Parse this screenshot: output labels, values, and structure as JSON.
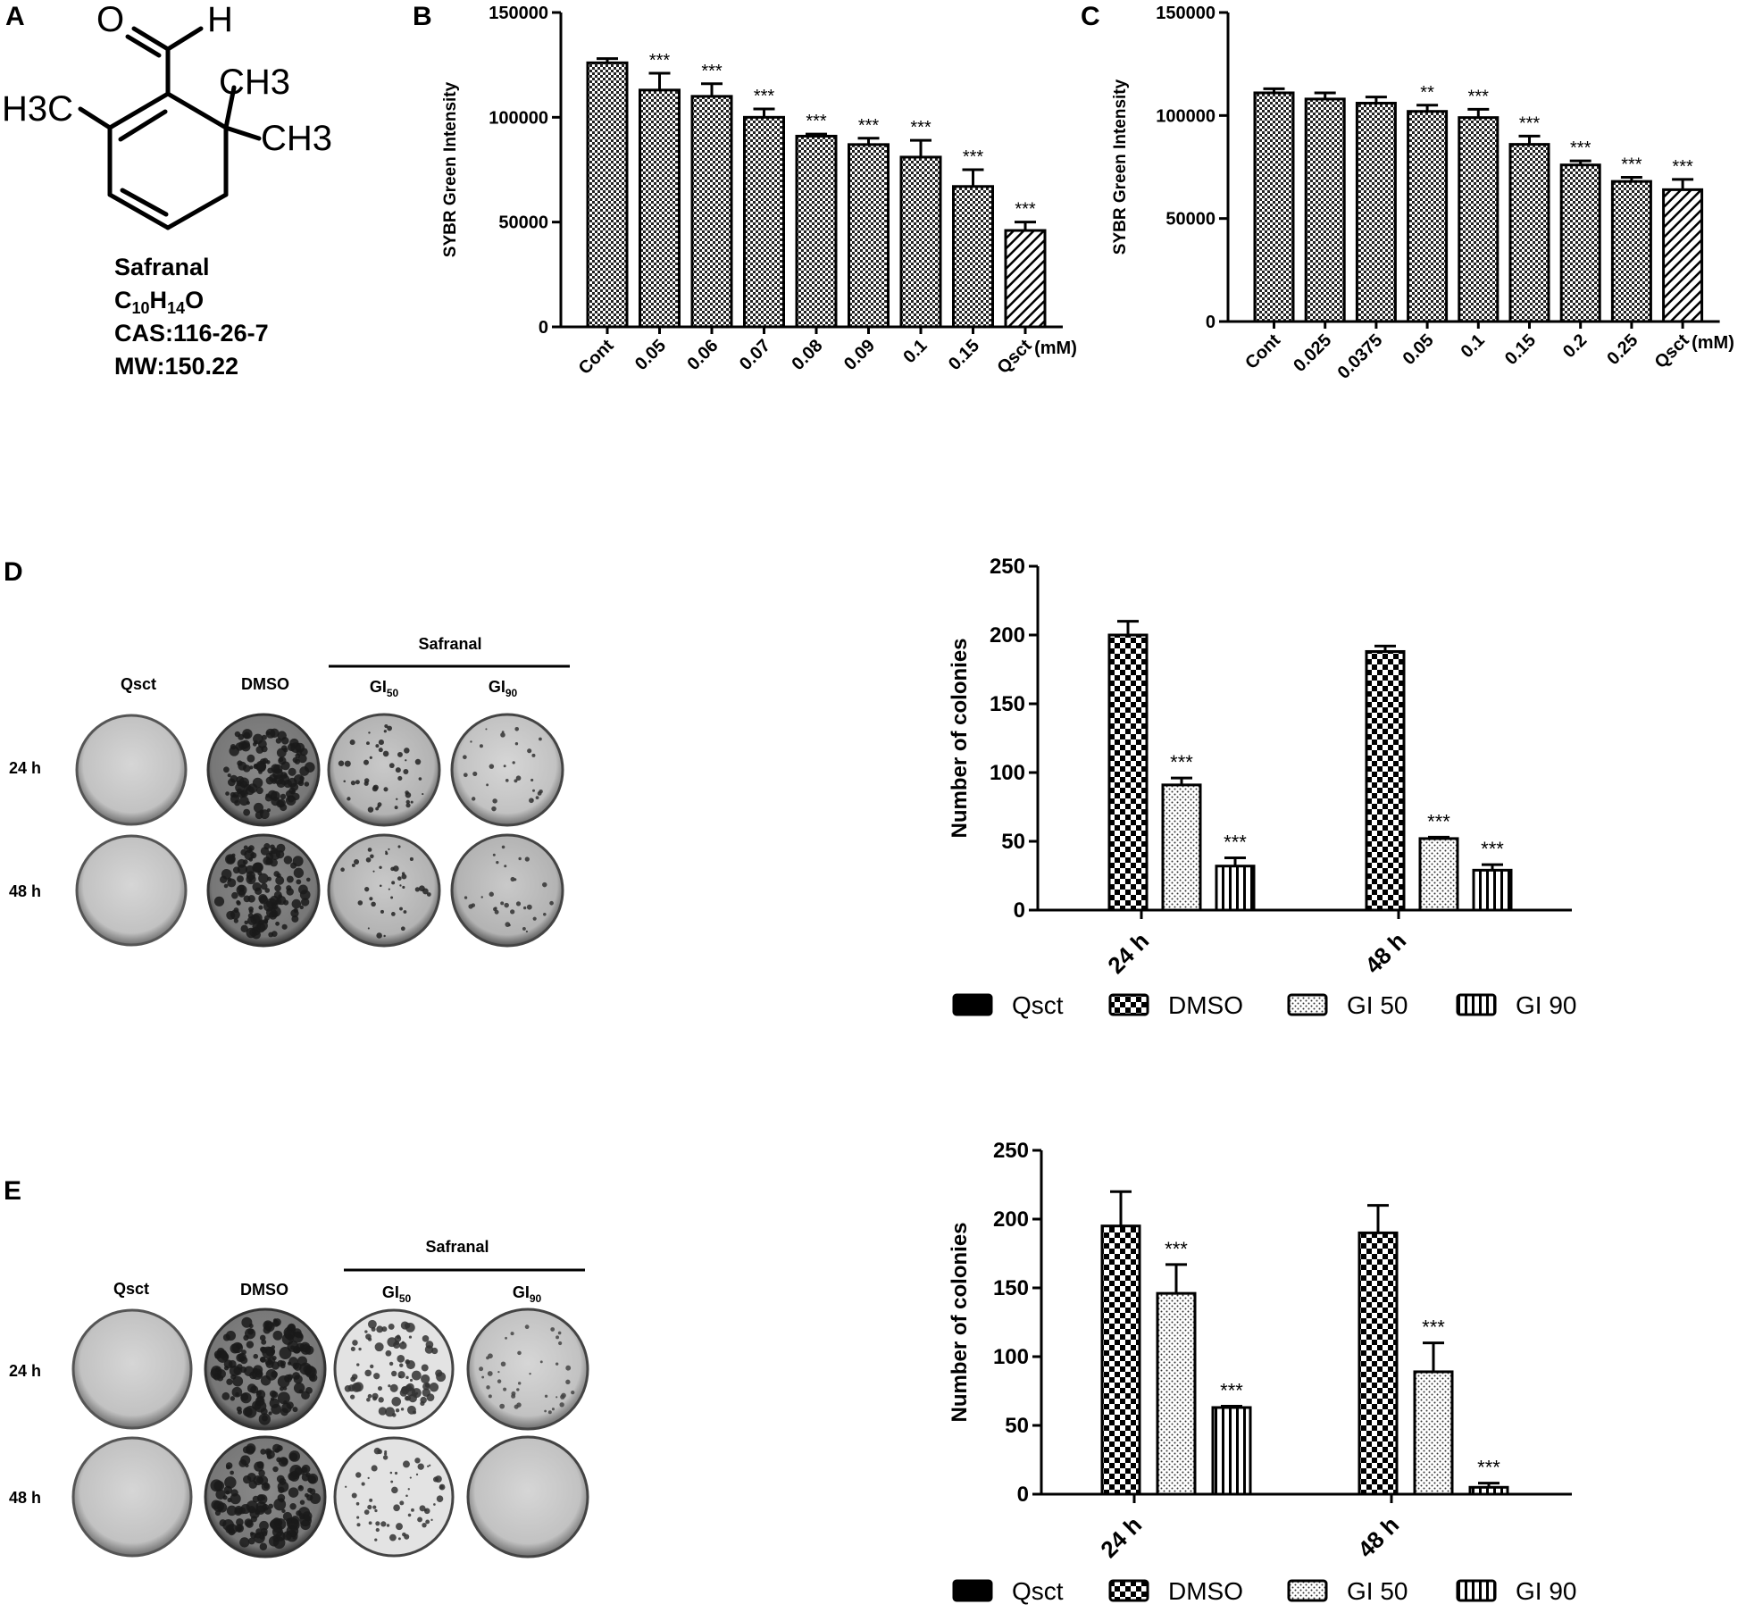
{
  "panel_a": {
    "letter": "A",
    "molecule": {
      "o_label": "O",
      "h_label": "H",
      "methyl_left": "H3C",
      "methyl_right_top": "CH3",
      "methyl_right_bottom": "CH3"
    },
    "name": "Safranal",
    "formula_main": "C",
    "formula_sub1": "10",
    "formula_h": "H",
    "formula_sub2": "14",
    "formula_o": "O",
    "cas": "CAS:116-26-7",
    "mw": "MW:150.22"
  },
  "panel_d": {
    "letter": "D",
    "group_label": "Safranal",
    "columns": [
      "Qsct",
      "DMSO",
      "GI",
      "GI"
    ],
    "column_subscripts": [
      "",
      "",
      "50",
      "90"
    ],
    "rows": [
      "24 h",
      "48 h"
    ]
  },
  "panel_e": {
    "letter": "E",
    "group_label": "Safranal",
    "columns": [
      "Qsct",
      "DMSO",
      "GI",
      "GI"
    ],
    "column_subscripts": [
      "",
      "",
      "50",
      "90"
    ],
    "rows": [
      "24 h",
      "48 h"
    ]
  },
  "chart_data": [
    {
      "id": "B",
      "panel_letter": "B",
      "type": "bar",
      "ylabel": "SYBR Green Intensity",
      "unit_label": "(mM)",
      "ylim": [
        0,
        150000
      ],
      "yticks": [
        0,
        50000,
        100000,
        150000
      ],
      "ytick_labels": [
        "0",
        "50000",
        "100000",
        "150000"
      ],
      "categories": [
        "Cont",
        "0.05",
        "0.06",
        "0.07",
        "0.08",
        "0.09",
        "0.1",
        "0.15",
        "Qsct"
      ],
      "values": [
        126000,
        113000,
        110000,
        100000,
        91000,
        87000,
        81000,
        67000,
        46000
      ],
      "errors": [
        2000,
        8000,
        6000,
        4000,
        1000,
        3000,
        8000,
        8000,
        4000
      ],
      "significance": [
        "",
        "***",
        "***",
        "***",
        "***",
        "***",
        "***",
        "***",
        "***"
      ],
      "patterns": [
        "check",
        "check",
        "check",
        "check",
        "check",
        "check",
        "check",
        "check",
        "hatch"
      ]
    },
    {
      "id": "C",
      "panel_letter": "C",
      "type": "bar",
      "ylabel": "SYBR Green Intensity",
      "unit_label": "(mM)",
      "ylim": [
        0,
        150000
      ],
      "yticks": [
        0,
        50000,
        100000,
        150000
      ],
      "ytick_labels": [
        "0",
        "50000",
        "100000",
        "150000"
      ],
      "categories": [
        "Cont",
        "0.025",
        "0.0375",
        "0.05",
        "0.1",
        "0.15",
        "0.2",
        "0.25",
        "Qsct"
      ],
      "values": [
        111000,
        108000,
        106000,
        102000,
        99000,
        86000,
        76000,
        68000,
        64000
      ],
      "errors": [
        2000,
        3000,
        3000,
        3000,
        4000,
        4000,
        2000,
        2000,
        5000
      ],
      "significance": [
        "",
        "",
        "",
        "**",
        "***",
        "***",
        "***",
        "***",
        "***"
      ],
      "patterns": [
        "check",
        "check",
        "check",
        "check",
        "check",
        "check",
        "check",
        "check",
        "hatch"
      ]
    },
    {
      "id": "D",
      "type": "bar",
      "ylabel": "Number of colonies",
      "ylim": [
        0,
        250
      ],
      "yticks": [
        0,
        50,
        100,
        150,
        200,
        250
      ],
      "ytick_labels": [
        "0",
        "50",
        "100",
        "150",
        "200",
        "250"
      ],
      "categories": [
        "24 h",
        "48 h"
      ],
      "series": [
        {
          "name": "Qsct",
          "pattern": "solid",
          "values": [
            0,
            0
          ],
          "errors": [
            0,
            0
          ],
          "significance": [
            "",
            ""
          ]
        },
        {
          "name": "DMSO",
          "pattern": "check",
          "values": [
            200,
            188
          ],
          "errors": [
            10,
            4
          ],
          "significance": [
            "",
            ""
          ]
        },
        {
          "name": "GI 50",
          "pattern": "dots",
          "values": [
            91,
            52
          ],
          "errors": [
            5,
            1
          ],
          "significance": [
            "***",
            "***"
          ]
        },
        {
          "name": "GI 90",
          "pattern": "vlines",
          "values": [
            32,
            29
          ],
          "errors": [
            6,
            4
          ],
          "significance": [
            "***",
            "***"
          ]
        }
      ],
      "legend_position": "bottom"
    },
    {
      "id": "E",
      "type": "bar",
      "ylabel": "Number of colonies",
      "ylim": [
        0,
        250
      ],
      "yticks": [
        0,
        50,
        100,
        150,
        200,
        250
      ],
      "ytick_labels": [
        "0",
        "50",
        "100",
        "150",
        "200",
        "250"
      ],
      "categories": [
        "24 h",
        "48 h"
      ],
      "series": [
        {
          "name": "Qsct",
          "pattern": "solid",
          "values": [
            0,
            0
          ],
          "errors": [
            0,
            0
          ],
          "significance": [
            "",
            ""
          ]
        },
        {
          "name": "DMSO",
          "pattern": "check",
          "values": [
            195,
            190
          ],
          "errors": [
            25,
            20
          ],
          "significance": [
            "",
            ""
          ]
        },
        {
          "name": "GI 50",
          "pattern": "dots",
          "values": [
            146,
            89
          ],
          "errors": [
            21,
            21
          ],
          "significance": [
            "***",
            "***"
          ]
        },
        {
          "name": "GI 90",
          "pattern": "vlines",
          "values": [
            63,
            5
          ],
          "errors": [
            1,
            3
          ],
          "significance": [
            "***",
            "***"
          ]
        }
      ],
      "legend_position": "bottom"
    }
  ]
}
